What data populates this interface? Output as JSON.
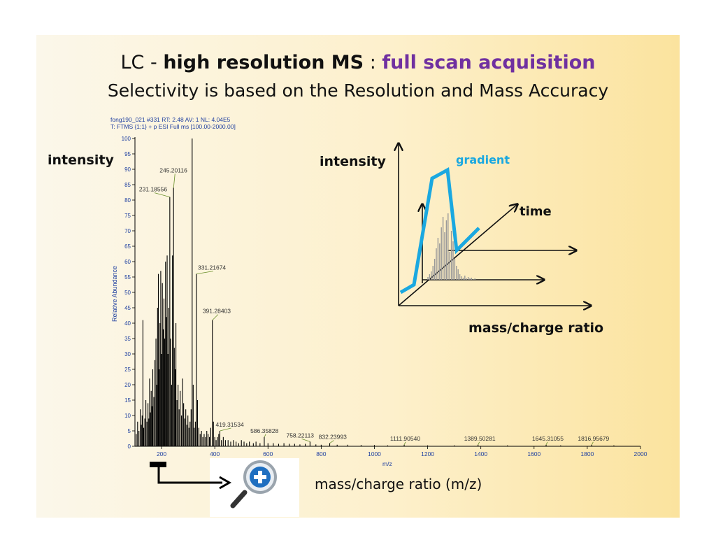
{
  "title": {
    "prefix": "LC - ",
    "bold": "high resolution MS",
    "separator": " : ",
    "accent": "full scan acquisition",
    "subtitle": "Selectivity is based on the Resolution and Mass Accuracy"
  },
  "labels": {
    "left_intensity": "intensity",
    "right_intensity": "intensity",
    "gradient": "gradient",
    "time": "time",
    "mass_charge_ratio": "mass/charge ratio",
    "mz_caption": "mass/charge ratio (m/z)"
  },
  "colors": {
    "accent_purple": "#7030a0",
    "gradient_blue": "#1aa8e0",
    "spectrum_black": "#000000",
    "annotation_green": "#6a8f2a"
  },
  "icons": [
    "magnifier-zoom-icon",
    "arrow-right-icon",
    "axis-arrow-icon"
  ],
  "chart_data": [
    {
      "type": "bar",
      "header": [
        "fong190_021 #331   RT: 2.48   AV: 1   NL: 4.04E5",
        "T: FTMS {1;1}  + p ESI Full ms [100.00-2000.00]"
      ],
      "xlabel": "m/z",
      "ylabel": "Relative Abundance",
      "xlim": [
        100,
        2000
      ],
      "ylim": [
        0,
        100
      ],
      "xticks": [
        200,
        400,
        600,
        800,
        1000,
        1200,
        1400,
        1600,
        1800,
        2000
      ],
      "yticks": [
        0,
        5,
        10,
        15,
        20,
        25,
        30,
        35,
        40,
        45,
        50,
        55,
        60,
        65,
        70,
        75,
        80,
        85,
        90,
        95,
        100
      ],
      "labeled_peaks": [
        {
          "x": 231.18556,
          "y": 81,
          "label": "231.18556"
        },
        {
          "x": 245.20116,
          "y": 84,
          "label": "245.20116"
        },
        {
          "x": 331.21674,
          "y": 56,
          "label": "331.21674"
        },
        {
          "x": 391.28403,
          "y": 41,
          "label": "391.28403"
        },
        {
          "x": 419.31534,
          "y": 5,
          "label": "419.31534"
        },
        {
          "x": 586.35828,
          "y": 3,
          "label": "586.35828"
        },
        {
          "x": 758.22113,
          "y": 1.5,
          "label": "758.22113"
        },
        {
          "x": 832.23993,
          "y": 1,
          "label": "832.23993"
        },
        {
          "x": 1111.9054,
          "y": 0.5,
          "label": "1111.90540"
        },
        {
          "x": 1389.50281,
          "y": 0.5,
          "label": "1389.50281"
        },
        {
          "x": 1645.31055,
          "y": 0.5,
          "label": "1645.31055"
        },
        {
          "x": 1816.95679,
          "y": 0.5,
          "label": "1816.95679"
        }
      ],
      "peaks": [
        [
          105,
          4
        ],
        [
          110,
          8
        ],
        [
          115,
          5
        ],
        [
          120,
          12
        ],
        [
          124,
          7
        ],
        [
          127,
          10
        ],
        [
          130,
          41
        ],
        [
          133,
          6
        ],
        [
          137,
          9
        ],
        [
          141,
          15
        ],
        [
          145,
          8
        ],
        [
          149,
          14
        ],
        [
          152,
          9
        ],
        [
          155,
          22
        ],
        [
          158,
          11
        ],
        [
          161,
          18
        ],
        [
          164,
          13
        ],
        [
          167,
          25
        ],
        [
          171,
          16
        ],
        [
          175,
          28
        ],
        [
          179,
          35
        ],
        [
          182,
          20
        ],
        [
          185,
          45
        ],
        [
          188,
          56
        ],
        [
          191,
          25
        ],
        [
          194,
          40
        ],
        [
          197,
          57
        ],
        [
          200,
          30
        ],
        [
          203,
          53
        ],
        [
          206,
          38
        ],
        [
          209,
          48
        ],
        [
          212,
          35
        ],
        [
          215,
          60
        ],
        [
          218,
          42
        ],
        [
          221,
          62
        ],
        [
          224,
          30
        ],
        [
          227,
          45
        ],
        [
          231,
          81
        ],
        [
          234,
          35
        ],
        [
          238,
          20
        ],
        [
          241,
          62
        ],
        [
          245,
          84
        ],
        [
          248,
          32
        ],
        [
          251,
          25
        ],
        [
          254,
          40
        ],
        [
          258,
          15
        ],
        [
          262,
          20
        ],
        [
          266,
          12
        ],
        [
          270,
          18
        ],
        [
          275,
          10
        ],
        [
          279,
          22
        ],
        [
          283,
          14
        ],
        [
          287,
          9
        ],
        [
          291,
          12
        ],
        [
          295,
          7
        ],
        [
          299,
          10
        ],
        [
          303,
          6
        ],
        [
          307,
          8
        ],
        [
          311,
          12
        ],
        [
          315,
          100
        ],
        [
          319,
          20
        ],
        [
          323,
          6
        ],
        [
          327,
          8
        ],
        [
          331,
          56
        ],
        [
          335,
          15
        ],
        [
          340,
          6
        ],
        [
          345,
          4
        ],
        [
          350,
          5
        ],
        [
          355,
          3
        ],
        [
          360,
          4
        ],
        [
          365,
          3
        ],
        [
          370,
          5
        ],
        [
          375,
          4
        ],
        [
          380,
          3
        ],
        [
          385,
          6
        ],
        [
          391,
          41
        ],
        [
          395,
          8
        ],
        [
          400,
          3
        ],
        [
          405,
          2
        ],
        [
          410,
          3
        ],
        [
          415,
          4
        ],
        [
          419,
          5
        ],
        [
          425,
          2
        ],
        [
          432,
          3
        ],
        [
          440,
          2
        ],
        [
          450,
          2
        ],
        [
          460,
          1.5
        ],
        [
          470,
          2
        ],
        [
          480,
          1.5
        ],
        [
          490,
          1
        ],
        [
          500,
          2
        ],
        [
          510,
          1.5
        ],
        [
          520,
          1
        ],
        [
          530,
          1.5
        ],
        [
          545,
          1
        ],
        [
          555,
          1.5
        ],
        [
          570,
          1
        ],
        [
          586,
          3
        ],
        [
          600,
          1
        ],
        [
          620,
          1
        ],
        [
          640,
          0.8
        ],
        [
          660,
          1
        ],
        [
          680,
          0.8
        ],
        [
          700,
          0.8
        ],
        [
          720,
          0.6
        ],
        [
          740,
          0.8
        ],
        [
          758,
          1.5
        ],
        [
          780,
          0.6
        ],
        [
          800,
          0.5
        ],
        [
          832,
          1
        ],
        [
          860,
          0.5
        ],
        [
          900,
          0.5
        ],
        [
          950,
          0.4
        ],
        [
          1000,
          0.4
        ],
        [
          1050,
          0.3
        ],
        [
          1111.9,
          0.5
        ],
        [
          1200,
          0.3
        ],
        [
          1300,
          0.3
        ],
        [
          1389.5,
          0.5
        ],
        [
          1500,
          0.3
        ],
        [
          1645.3,
          0.5
        ],
        [
          1700,
          0.3
        ],
        [
          1816.96,
          0.5
        ],
        [
          1900,
          0.3
        ]
      ]
    }
  ]
}
